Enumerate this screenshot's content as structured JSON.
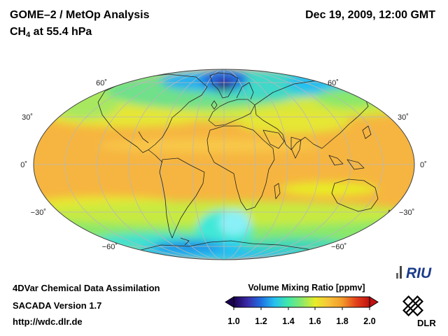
{
  "header": {
    "title": "GOME–2 / MetOp Analysis",
    "subtitle_species": "CH",
    "subtitle_sub": "4",
    "subtitle_rest": " at 55.4 hPa",
    "datetime": "Dec 19, 2009, 12:00 GMT"
  },
  "map": {
    "projection": "Hammer/Aitoff-like world ellipse",
    "lat_labels_left": [
      "60˚",
      "30˚",
      "0˚",
      "−30˚",
      "−60˚"
    ],
    "lat_labels_right": [
      "60˚",
      "30˚",
      "0˚",
      "−30˚",
      "−60˚"
    ]
  },
  "colorbar": {
    "title": "Volume Mixing Ratio [ppmv]",
    "ticks": [
      "1.0",
      "1.2",
      "1.4",
      "1.6",
      "1.8",
      "2.0"
    ],
    "colors": [
      "#1a0050",
      "#3a2aa8",
      "#1f6fe0",
      "#27c0f0",
      "#40e8a8",
      "#8ae86a",
      "#e8ec28",
      "#f8c23a",
      "#f29a2a",
      "#e4421c",
      "#c01010"
    ]
  },
  "footer": {
    "line1": "4DVar Chemical Data Assimilation",
    "line2": "SACADA Version 1.7",
    "line3": "http://wdc.dlr.de"
  },
  "logos": {
    "riu": "RIU",
    "dlr": "DLR"
  }
}
